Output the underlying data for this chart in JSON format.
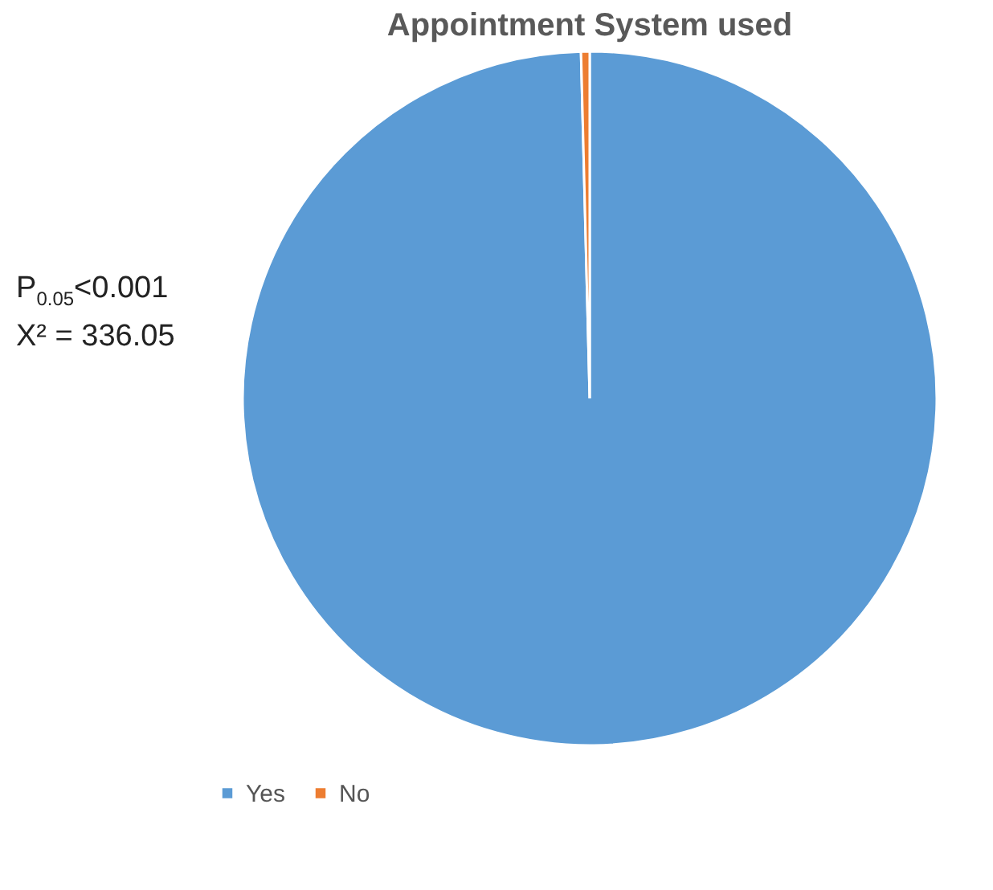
{
  "chart_data": {
    "type": "pie",
    "title": "Appointment System used",
    "categories": [
      "Yes",
      "No"
    ],
    "values": [
      99.6,
      0.4
    ],
    "colors": [
      "#5b9bd5",
      "#ed7d31"
    ],
    "legend": "bottom",
    "annotations": [
      "P$_{0.05}$<0.001",
      "X² = 336.05"
    ]
  }
}
